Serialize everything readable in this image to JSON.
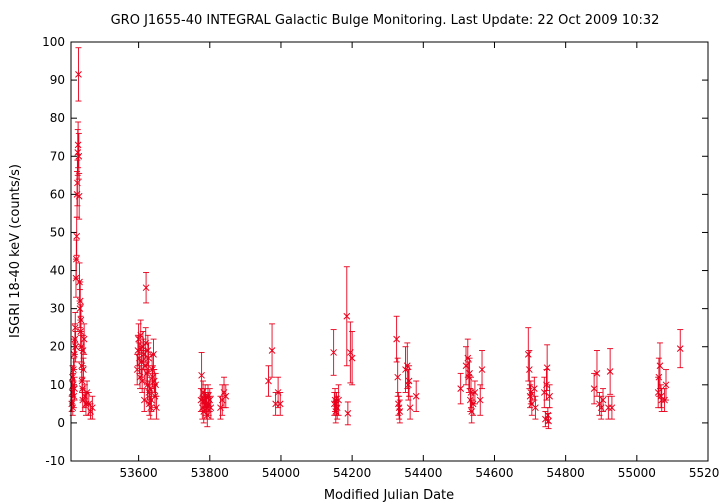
{
  "chart_data": {
    "type": "scatter",
    "title": "GRO J1655-40   INTEGRAL Galactic Bulge Monitoring.  Last Update: 22 Oct 2009 10:32",
    "xlabel": "Modified Julian Date",
    "ylabel": "ISGRI 18-40 keV (counts/s)",
    "xlim": [
      53410,
      55200
    ],
    "ylim": [
      -10,
      100
    ],
    "xticks": [
      53600,
      53800,
      54000,
      54200,
      54400,
      54600,
      54800,
      55000,
      55200
    ],
    "yticks": [
      -10,
      0,
      10,
      20,
      30,
      40,
      50,
      60,
      70,
      80,
      90,
      100
    ],
    "grid": false,
    "marker": "x",
    "color": "#e8001c",
    "points": [
      [
        53412,
        5,
        2
      ],
      [
        53413,
        8,
        3
      ],
      [
        53414,
        12,
        3
      ],
      [
        53415,
        4,
        2
      ],
      [
        53416,
        10,
        3
      ],
      [
        53417,
        14,
        3
      ],
      [
        53418,
        7,
        3
      ],
      [
        53419,
        18,
        4
      ],
      [
        53420,
        9,
        3
      ],
      [
        53421,
        22,
        4
      ],
      [
        53422,
        25,
        4
      ],
      [
        53423,
        20,
        4
      ],
      [
        53424,
        38,
        5
      ],
      [
        53425,
        43,
        5
      ],
      [
        53426,
        49,
        5
      ],
      [
        53427,
        60,
        6
      ],
      [
        53428,
        63,
        6
      ],
      [
        53429,
        71,
        6
      ],
      [
        53430,
        73,
        6
      ],
      [
        53431,
        91.5,
        7
      ],
      [
        53432,
        70,
        6
      ],
      [
        53433,
        59.5,
        6
      ],
      [
        53434,
        37,
        5
      ],
      [
        53435,
        30,
        5
      ],
      [
        53436,
        32,
        5
      ],
      [
        53437,
        24,
        4
      ],
      [
        53438,
        27,
        4
      ],
      [
        53439,
        20,
        4
      ],
      [
        53440,
        15,
        4
      ],
      [
        53441,
        11,
        3
      ],
      [
        53442,
        9,
        3
      ],
      [
        53443,
        6,
        3
      ],
      [
        53444,
        19,
        4
      ],
      [
        53445,
        14,
        3
      ],
      [
        53447,
        22,
        4
      ],
      [
        53449,
        7,
        3
      ],
      [
        53452,
        5,
        3
      ],
      [
        53455,
        8,
        3
      ],
      [
        53460,
        5,
        3
      ],
      [
        53465,
        3,
        2
      ],
      [
        53470,
        4,
        3
      ],
      [
        53596,
        14,
        4
      ],
      [
        53598,
        19,
        4
      ],
      [
        53600,
        22,
        4
      ],
      [
        53602,
        17,
        4
      ],
      [
        53604,
        12,
        3
      ],
      [
        53606,
        23,
        4
      ],
      [
        53608,
        16,
        4
      ],
      [
        53610,
        11,
        3
      ],
      [
        53612,
        20,
        4
      ],
      [
        53614,
        18,
        4
      ],
      [
        53616,
        6,
        3
      ],
      [
        53618,
        15,
        4
      ],
      [
        53620,
        21,
        4
      ],
      [
        53621,
        35.5,
        4
      ],
      [
        53623,
        13,
        3
      ],
      [
        53625,
        10,
        4
      ],
      [
        53626,
        19,
        4
      ],
      [
        53628,
        17,
        4
      ],
      [
        53629,
        8,
        3
      ],
      [
        53630,
        5,
        3
      ],
      [
        53632,
        9,
        3
      ],
      [
        53634,
        4,
        3
      ],
      [
        53636,
        6,
        3
      ],
      [
        53638,
        14,
        4
      ],
      [
        53640,
        12,
        3
      ],
      [
        53642,
        18,
        4
      ],
      [
        53644,
        11,
        3
      ],
      [
        53646,
        7,
        3
      ],
      [
        53648,
        10,
        3
      ],
      [
        53650,
        4,
        3
      ],
      [
        53775,
        6,
        3
      ],
      [
        53777,
        12.5,
        6
      ],
      [
        53779,
        4,
        3
      ],
      [
        53781,
        8,
        3
      ],
      [
        53783,
        3,
        3
      ],
      [
        53785,
        6,
        3
      ],
      [
        53787,
        7,
        3
      ],
      [
        53789,
        5,
        3
      ],
      [
        53791,
        4,
        3
      ],
      [
        53793,
        2,
        3
      ],
      [
        53795,
        7,
        3
      ],
      [
        53797,
        5,
        3
      ],
      [
        53800,
        6,
        3
      ],
      [
        53803,
        4,
        3
      ],
      [
        53830,
        4,
        3
      ],
      [
        53835,
        6,
        4
      ],
      [
        53840,
        8,
        4
      ],
      [
        53845,
        7,
        3
      ],
      [
        53965,
        11,
        4
      ],
      [
        53975,
        19,
        7
      ],
      [
        53985,
        5,
        3
      ],
      [
        53992,
        8,
        4
      ],
      [
        53998,
        5,
        3
      ],
      [
        54148,
        18.5,
        6
      ],
      [
        54150,
        5,
        3
      ],
      [
        54152,
        6,
        3
      ],
      [
        54154,
        3,
        3
      ],
      [
        54156,
        5,
        3
      ],
      [
        54158,
        4,
        3
      ],
      [
        54162,
        6,
        4
      ],
      [
        54185,
        28,
        13
      ],
      [
        54188,
        2.5,
        3
      ],
      [
        54195,
        18.5,
        8
      ],
      [
        54200,
        17,
        7
      ],
      [
        54325,
        22,
        6
      ],
      [
        54328,
        12,
        5
      ],
      [
        54330,
        5,
        3
      ],
      [
        54332,
        4,
        3
      ],
      [
        54334,
        3,
        3
      ],
      [
        54350,
        14,
        6
      ],
      [
        54355,
        15,
        6
      ],
      [
        54358,
        10,
        4
      ],
      [
        54360,
        11,
        4
      ],
      [
        54363,
        4,
        3
      ],
      [
        54380,
        7,
        4
      ],
      [
        54505,
        9,
        4
      ],
      [
        54520,
        15,
        5
      ],
      [
        54525,
        17,
        5
      ],
      [
        54528,
        12,
        4
      ],
      [
        54530,
        13,
        4
      ],
      [
        54532,
        6,
        3
      ],
      [
        54534,
        8,
        4
      ],
      [
        54536,
        3,
        3
      ],
      [
        54540,
        5,
        3
      ],
      [
        54545,
        8,
        3
      ],
      [
        54560,
        6,
        4
      ],
      [
        54565,
        14,
        5
      ],
      [
        54695,
        18,
        7
      ],
      [
        54698,
        14,
        5
      ],
      [
        54700,
        7,
        3
      ],
      [
        54702,
        8,
        3
      ],
      [
        54705,
        5,
        3
      ],
      [
        54712,
        9,
        3
      ],
      [
        54715,
        4,
        3
      ],
      [
        54740,
        8,
        4
      ],
      [
        54743,
        1,
        2
      ],
      [
        54746,
        10,
        4
      ],
      [
        54748,
        14.5,
        6
      ],
      [
        54750,
        2,
        2
      ],
      [
        54752,
        0.5,
        2
      ],
      [
        54755,
        7,
        3
      ],
      [
        54880,
        9,
        4
      ],
      [
        54888,
        13,
        6
      ],
      [
        54895,
        5,
        3
      ],
      [
        54900,
        4,
        3
      ],
      [
        54905,
        6,
        3
      ],
      [
        54920,
        4,
        3
      ],
      [
        54925,
        13.5,
        6
      ],
      [
        54930,
        4,
        3
      ],
      [
        55060,
        8,
        4
      ],
      [
        55062,
        12,
        5
      ],
      [
        55065,
        15,
        6
      ],
      [
        55068,
        7,
        3
      ],
      [
        55070,
        6,
        3
      ],
      [
        55078,
        6,
        3
      ],
      [
        55082,
        10,
        4
      ],
      [
        55122,
        19.5,
        5
      ]
    ]
  }
}
